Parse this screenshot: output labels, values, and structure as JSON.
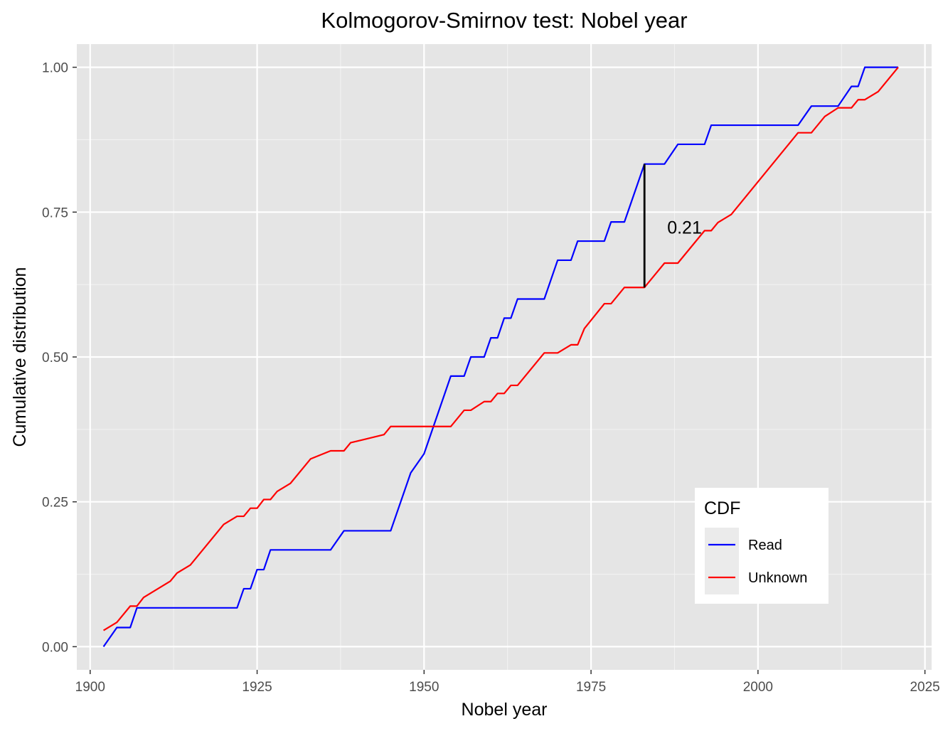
{
  "chart_data": {
    "type": "line",
    "title": "Kolmogorov-Smirnov test: Nobel year",
    "xlabel": "Nobel year",
    "ylabel": "Cumulative distribution",
    "xlim": [
      1898,
      2026
    ],
    "ylim": [
      -0.04,
      1.04
    ],
    "xticks": [
      1900,
      1925,
      1950,
      1975,
      2000,
      2025
    ],
    "yticks": [
      0.0,
      0.25,
      0.5,
      0.75,
      1.0
    ],
    "yticklabels": [
      "0.00",
      "0.25",
      "0.50",
      "0.75",
      "1.00"
    ],
    "grid": true,
    "legend": {
      "title": "CDF",
      "position": "bottom-right"
    },
    "series": [
      {
        "name": "Read",
        "color": "#0000ff",
        "points": [
          [
            1902,
            0.0
          ],
          [
            1904,
            0.033
          ],
          [
            1906,
            0.033
          ],
          [
            1907,
            0.067
          ],
          [
            1922,
            0.067
          ],
          [
            1923,
            0.1
          ],
          [
            1924,
            0.1
          ],
          [
            1925,
            0.133
          ],
          [
            1926,
            0.133
          ],
          [
            1927,
            0.167
          ],
          [
            1936,
            0.167
          ],
          [
            1938,
            0.2
          ],
          [
            1945,
            0.2
          ],
          [
            1948,
            0.3
          ],
          [
            1950,
            0.333
          ],
          [
            1954,
            0.467
          ],
          [
            1956,
            0.467
          ],
          [
            1957,
            0.5
          ],
          [
            1959,
            0.5
          ],
          [
            1960,
            0.533
          ],
          [
            1961,
            0.533
          ],
          [
            1962,
            0.567
          ],
          [
            1963,
            0.567
          ],
          [
            1964,
            0.6
          ],
          [
            1968,
            0.6
          ],
          [
            1970,
            0.667
          ],
          [
            1972,
            0.667
          ],
          [
            1973,
            0.7
          ],
          [
            1977,
            0.7
          ],
          [
            1978,
            0.733
          ],
          [
            1980,
            0.733
          ],
          [
            1983,
            0.833
          ],
          [
            1986,
            0.833
          ],
          [
            1988,
            0.867
          ],
          [
            1992,
            0.867
          ],
          [
            1993,
            0.9
          ],
          [
            2006,
            0.9
          ],
          [
            2008,
            0.933
          ],
          [
            2012,
            0.933
          ],
          [
            2014,
            0.967
          ],
          [
            2015,
            0.967
          ],
          [
            2016,
            1.0
          ],
          [
            2021,
            1.0
          ]
        ]
      },
      {
        "name": "Unknown",
        "color": "#ff0000",
        "points": [
          [
            1902,
            0.028
          ],
          [
            1904,
            0.042
          ],
          [
            1906,
            0.07
          ],
          [
            1907,
            0.07
          ],
          [
            1908,
            0.085
          ],
          [
            1912,
            0.113
          ],
          [
            1913,
            0.127
          ],
          [
            1915,
            0.141
          ],
          [
            1920,
            0.211
          ],
          [
            1922,
            0.225
          ],
          [
            1923,
            0.225
          ],
          [
            1924,
            0.239
          ],
          [
            1925,
            0.239
          ],
          [
            1926,
            0.254
          ],
          [
            1927,
            0.254
          ],
          [
            1928,
            0.268
          ],
          [
            1930,
            0.282
          ],
          [
            1933,
            0.324
          ],
          [
            1936,
            0.338
          ],
          [
            1938,
            0.338
          ],
          [
            1939,
            0.352
          ],
          [
            1944,
            0.366
          ],
          [
            1945,
            0.38
          ],
          [
            1954,
            0.38
          ],
          [
            1956,
            0.408
          ],
          [
            1957,
            0.408
          ],
          [
            1959,
            0.423
          ],
          [
            1960,
            0.423
          ],
          [
            1961,
            0.437
          ],
          [
            1962,
            0.437
          ],
          [
            1963,
            0.451
          ],
          [
            1964,
            0.451
          ],
          [
            1968,
            0.507
          ],
          [
            1970,
            0.507
          ],
          [
            1972,
            0.521
          ],
          [
            1973,
            0.521
          ],
          [
            1974,
            0.549
          ],
          [
            1977,
            0.592
          ],
          [
            1978,
            0.592
          ],
          [
            1980,
            0.62
          ],
          [
            1983,
            0.62
          ],
          [
            1986,
            0.662
          ],
          [
            1988,
            0.662
          ],
          [
            1992,
            0.718
          ],
          [
            1993,
            0.718
          ],
          [
            1994,
            0.732
          ],
          [
            1996,
            0.746
          ],
          [
            2006,
            0.887
          ],
          [
            2008,
            0.887
          ],
          [
            2010,
            0.915
          ],
          [
            2012,
            0.93
          ],
          [
            2014,
            0.93
          ],
          [
            2015,
            0.944
          ],
          [
            2016,
            0.944
          ],
          [
            2018,
            0.958
          ],
          [
            2021,
            1.0
          ]
        ]
      }
    ],
    "annotations": [
      {
        "type": "segment",
        "x": 1983,
        "y_from": 0.62,
        "y_to": 0.833,
        "color": "#000000"
      },
      {
        "type": "text",
        "text": "0.21",
        "x": 1989,
        "y": 0.724
      }
    ]
  }
}
